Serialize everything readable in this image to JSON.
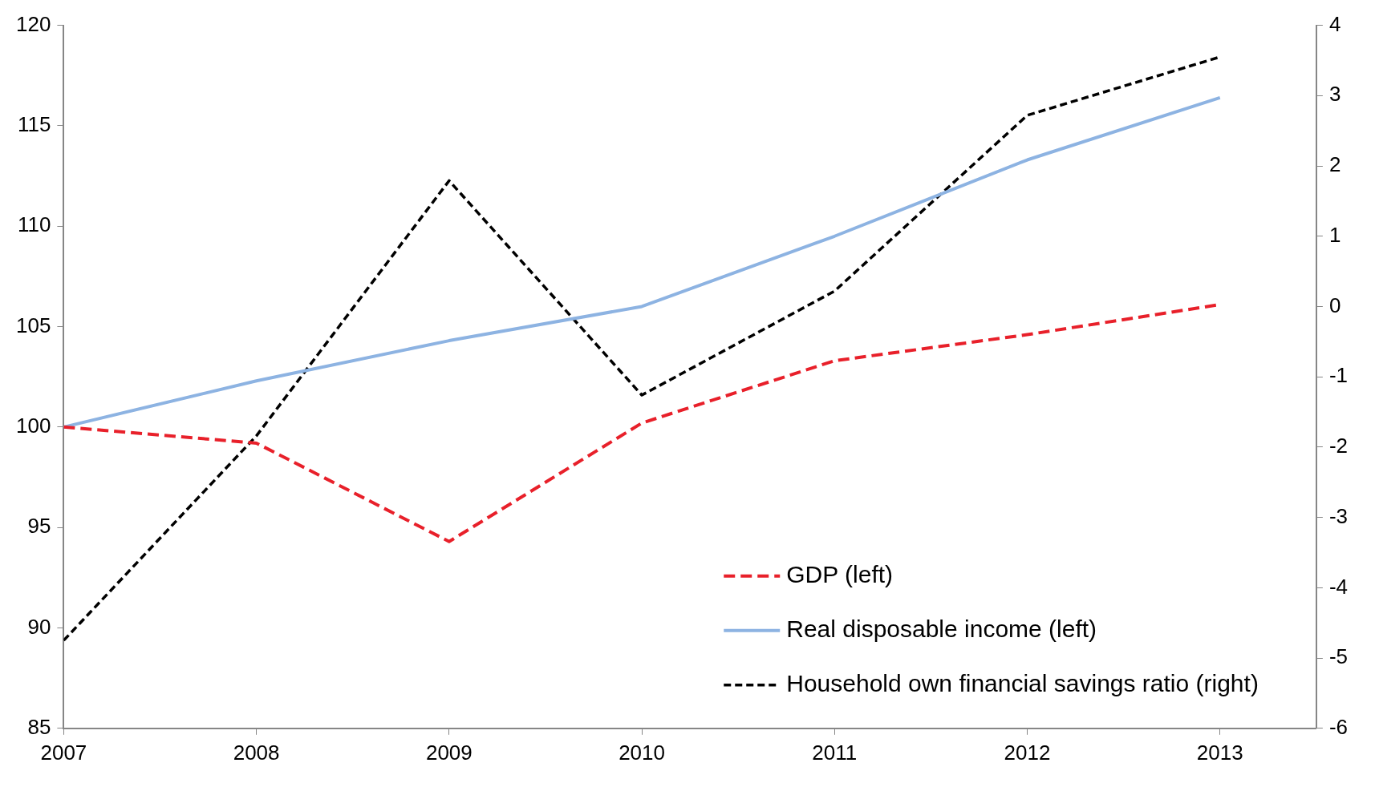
{
  "chart_data": {
    "type": "line",
    "x": [
      2007,
      2008,
      2009,
      2010,
      2011,
      2012,
      2013
    ],
    "xlim": [
      2007,
      2013.5
    ],
    "xticks": [
      2007,
      2008,
      2009,
      2010,
      2011,
      2012,
      2013
    ],
    "ylim": [
      85,
      120
    ],
    "yticks": [
      85,
      90,
      95,
      100,
      105,
      110,
      115,
      120
    ],
    "y2lim": [
      -6,
      4
    ],
    "y2ticks": [
      -6,
      -5,
      -4,
      -3,
      -2,
      -1,
      0,
      1,
      2,
      3,
      4
    ],
    "grid": false,
    "legend": "bottom right",
    "marker": "none",
    "series": [
      {
        "name": "GDP (left)",
        "color": "#e8202a",
        "line_style": "dashed",
        "values": [
          100,
          99.2,
          94.3,
          100.2,
          103.3,
          104.6,
          106.1
        ]
      },
      {
        "name": "Real disposable income (left)",
        "color": "#8db3e2",
        "line_style": "solid",
        "values": [
          100,
          102.3,
          104.3,
          106.0,
          109.5,
          113.3,
          116.4
        ]
      },
      {
        "name": "Household own financial savings ratio (right)",
        "color": "#000000",
        "line_style": "dashed",
        "axis": "y2",
        "values": [
          -4.75,
          -1.84,
          1.79,
          -1.26,
          0.22,
          2.72,
          3.55
        ]
      }
    ]
  }
}
